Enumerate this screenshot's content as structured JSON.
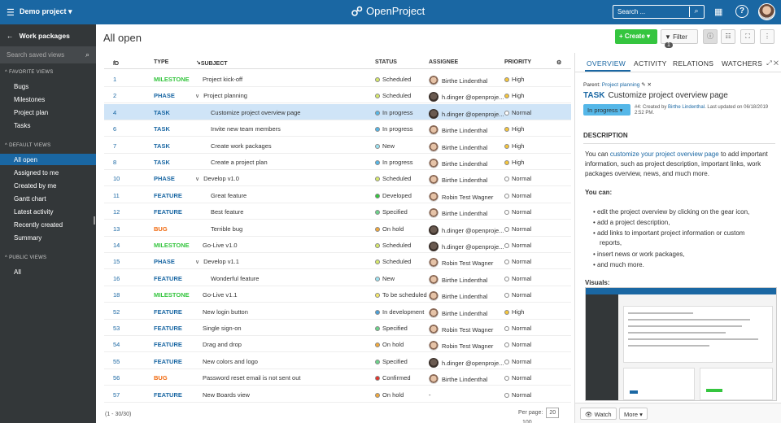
{
  "header": {
    "project": "Demo project",
    "brand": "OpenProject",
    "search_placeholder": "Search ..."
  },
  "sidebar": {
    "title": "Work packages",
    "search_placeholder": "Search saved views",
    "sections": [
      {
        "label": "FAVORITE VIEWS",
        "items": [
          "Bugs",
          "Milestones",
          "Project plan",
          "Tasks"
        ]
      },
      {
        "label": "DEFAULT VIEWS",
        "items": [
          "All open",
          "Assigned to me",
          "Created by me",
          "Gantt chart",
          "Latest activity",
          "Recently created",
          "Summary"
        ]
      },
      {
        "label": "PUBLIC VIEWS",
        "items": [
          "All"
        ]
      }
    ],
    "active": "All open"
  },
  "main": {
    "title": "All open",
    "create_label": "+ Create",
    "filter_label": "Filter",
    "filter_count": "1",
    "columns": [
      "ID",
      "TYPE",
      "SUBJECT",
      "STATUS",
      "ASSIGNEE",
      "PRIORITY"
    ],
    "rows": [
      {
        "id": "1",
        "type": "MILESTONE",
        "subject": "Project kick-off",
        "indent": 0,
        "status": "Scheduled",
        "assignee": "Birthe Lindenthal",
        "priority": "High"
      },
      {
        "id": "2",
        "type": "PHASE",
        "subject": "Project planning",
        "indent": 0,
        "chevron": true,
        "status": "Scheduled",
        "assignee": "h.dinger @openproje...",
        "priority": "High"
      },
      {
        "id": "4",
        "type": "TASK",
        "subject": "Customize project overview page",
        "indent": 1,
        "status": "In progress",
        "assignee": "h.dinger @openproje...",
        "priority": "Normal",
        "selected": true
      },
      {
        "id": "6",
        "type": "TASK",
        "subject": "Invite new team members",
        "indent": 1,
        "status": "In progress",
        "assignee": "Birthe Lindenthal",
        "priority": "High"
      },
      {
        "id": "7",
        "type": "TASK",
        "subject": "Create work packages",
        "indent": 1,
        "status": "New",
        "assignee": "Birthe Lindenthal",
        "priority": "High"
      },
      {
        "id": "8",
        "type": "TASK",
        "subject": "Create a project plan",
        "indent": 1,
        "status": "In progress",
        "assignee": "Birthe Lindenthal",
        "priority": "High"
      },
      {
        "id": "10",
        "type": "PHASE",
        "subject": "Develop v1.0",
        "indent": 0,
        "chevron": true,
        "status": "Scheduled",
        "assignee": "Birthe Lindenthal",
        "priority": "Normal"
      },
      {
        "id": "11",
        "type": "FEATURE",
        "subject": "Great feature",
        "indent": 1,
        "status": "Developed",
        "assignee": "Robin Test Wagner",
        "priority": "Normal"
      },
      {
        "id": "12",
        "type": "FEATURE",
        "subject": "Best feature",
        "indent": 1,
        "status": "Specified",
        "assignee": "Birthe Lindenthal",
        "priority": "Normal"
      },
      {
        "id": "13",
        "type": "BUG",
        "subject": "Terrible bug",
        "indent": 1,
        "status": "On hold",
        "assignee": "h.dinger @openproje...",
        "priority": "Normal"
      },
      {
        "id": "14",
        "type": "MILESTONE",
        "subject": "Go-Live v1.0",
        "indent": 0,
        "status": "Scheduled",
        "assignee": "h.dinger @openproje...",
        "priority": "Normal"
      },
      {
        "id": "15",
        "type": "PHASE",
        "subject": "Develop v1.1",
        "indent": 0,
        "chevron": true,
        "status": "Scheduled",
        "assignee": "Robin Test Wagner",
        "priority": "Normal"
      },
      {
        "id": "16",
        "type": "FEATURE",
        "subject": "Wonderful feature",
        "indent": 1,
        "status": "New",
        "assignee": "Birthe Lindenthal",
        "priority": "Normal"
      },
      {
        "id": "18",
        "type": "MILESTONE",
        "subject": "Go-Live v1.1",
        "indent": 0,
        "status": "To be scheduled",
        "assignee": "Birthe Lindenthal",
        "priority": "Normal"
      },
      {
        "id": "52",
        "type": "FEATURE",
        "subject": "New login button",
        "indent": 0,
        "status": "In development",
        "assignee": "Birthe Lindenthal",
        "priority": "High"
      },
      {
        "id": "53",
        "type": "FEATURE",
        "subject": "Single sign-on",
        "indent": 0,
        "status": "Specified",
        "assignee": "Robin Test Wagner",
        "priority": "Normal"
      },
      {
        "id": "54",
        "type": "FEATURE",
        "subject": "Drag and drop",
        "indent": 0,
        "status": "On hold",
        "assignee": "Robin Test Wagner",
        "priority": "Normal"
      },
      {
        "id": "55",
        "type": "FEATURE",
        "subject": "New colors and logo",
        "indent": 0,
        "status": "Specified",
        "assignee": "h.dinger @openproje...",
        "priority": "Normal"
      },
      {
        "id": "56",
        "type": "BUG",
        "subject": "Password reset email is not sent out",
        "indent": 0,
        "status": "Confirmed",
        "assignee": "Birthe Lindenthal",
        "priority": "Normal"
      },
      {
        "id": "57",
        "type": "FEATURE",
        "subject": "New Boards view",
        "indent": 0,
        "status": "On hold",
        "assignee": "-",
        "priority": "Normal"
      }
    ],
    "count": "(1 - 30/30)",
    "per_page_label": "Per page:",
    "per_page_options": [
      "20",
      "100"
    ]
  },
  "colors": {
    "type": {
      "MILESTONE": "#35c53f",
      "PHASE": "#1a67a3",
      "TASK": "#1a67a3",
      "FEATURE": "#1a67a3",
      "BUG": "#f0690e"
    },
    "status": {
      "Scheduled": "#d6e86b",
      "In progress": "#55b7e8",
      "New": "#9be3f2",
      "Developed": "#35c53f",
      "Specified": "#6bd48a",
      "On hold": "#f2a93b",
      "To be scheduled": "#f6e96a",
      "In development": "#4aa0d8",
      "Confirmed": "#e3352c"
    },
    "priority": {
      "High": "#f6c63b",
      "Normal": "#ffffff"
    }
  },
  "details": {
    "tabs": [
      "OVERVIEW",
      "ACTIVITY",
      "RELATIONS",
      "WATCHERS"
    ],
    "parent_label": "Parent:",
    "parent_link": "Project planning",
    "type": "TASK",
    "subject": "Customize project overview page",
    "status": "In progress",
    "created_prefix": "#4: Created by",
    "created_by": "Birthe Lindenthal",
    "created_suffix": ". Last updated on 06/18/2019 2:52 PM.",
    "description_heading": "DESCRIPTION",
    "desc_prefix": "You can",
    "desc_link": "customize your project overview page",
    "desc_suffix": "to add important information, such as project description, important links, work packages overview, news, and much more.",
    "you_can": "You can:",
    "bullets": [
      "edit the project overview by clicking on the gear icon,",
      "add a project description,",
      "add links to important project information or custom",
      "reports,",
      "insert news or work packages,",
      "and much more."
    ],
    "visuals": "Visuals:",
    "watch_label": "Watch",
    "more_label": "More"
  }
}
